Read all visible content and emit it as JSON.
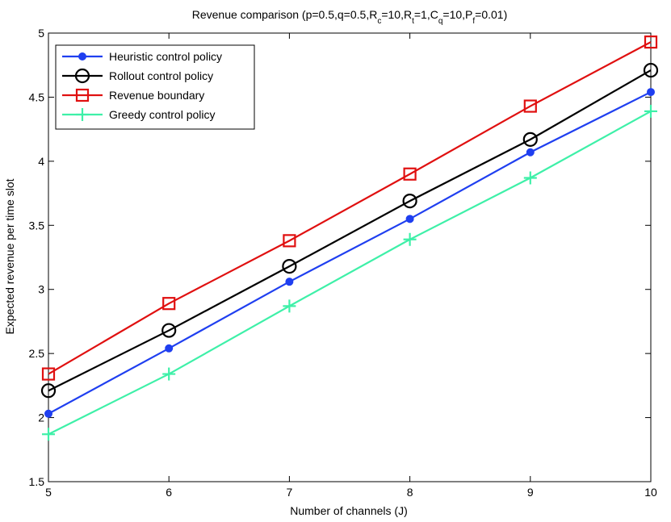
{
  "chart_data": {
    "type": "line",
    "title_main": "Revenue comparison (p=0.5,q=0.5,R",
    "title_parts": [
      {
        "text": "Revenue comparison (p=0.5,q=0.5,R",
        "sub": false
      },
      {
        "text": "c",
        "sub": true
      },
      {
        "text": "=10,R",
        "sub": false
      },
      {
        "text": "t",
        "sub": true
      },
      {
        "text": "=1,C",
        "sub": false
      },
      {
        "text": "q",
        "sub": true
      },
      {
        "text": "=10,P",
        "sub": false
      },
      {
        "text": "f",
        "sub": true
      },
      {
        "text": "=0.01)",
        "sub": false
      }
    ],
    "xlabel": "Number of channels (J)",
    "ylabel": "Expected revenue per time slot",
    "x": [
      5,
      6,
      7,
      8,
      9,
      10
    ],
    "xlim": [
      5,
      10
    ],
    "ylim": [
      1.5,
      5
    ],
    "xticks": [
      "5",
      "6",
      "7",
      "8",
      "9",
      "10"
    ],
    "yticks": [
      "1.5",
      "2",
      "2.5",
      "3",
      "3.5",
      "4",
      "4.5",
      "5"
    ],
    "ytick_values": [
      1.5,
      2,
      2.5,
      3,
      3.5,
      4,
      4.5,
      5
    ],
    "grid": false,
    "legend_position": "top-left",
    "series": [
      {
        "name": "Heuristic control policy",
        "color": "#1f3ff0",
        "marker": "dot",
        "values": [
          2.03,
          2.54,
          3.06,
          3.55,
          4.07,
          4.54
        ]
      },
      {
        "name": "Rollout control policy",
        "color": "#000000",
        "marker": "circle",
        "values": [
          2.21,
          2.68,
          3.18,
          3.69,
          4.17,
          4.71
        ]
      },
      {
        "name": "Revenue boundary",
        "color": "#e01010",
        "marker": "square",
        "values": [
          2.34,
          2.89,
          3.38,
          3.9,
          4.43,
          4.93
        ]
      },
      {
        "name": "Greedy control policy",
        "color": "#3ef0a8",
        "marker": "plus",
        "values": [
          1.87,
          2.34,
          2.87,
          3.39,
          3.87,
          4.39
        ]
      }
    ]
  }
}
